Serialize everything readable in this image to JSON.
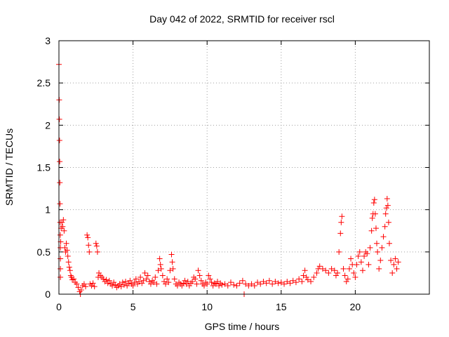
{
  "chart_data": {
    "type": "scatter",
    "title": "Day 042 of 2022, SRMTID for receiver rscl",
    "xlabel": "GPS time / hours",
    "ylabel": "SRMTID / TECUs",
    "xlim": [
      0,
      25
    ],
    "ylim": [
      0,
      3
    ],
    "xticks": [
      0,
      5,
      10,
      15,
      20
    ],
    "yticks": [
      0,
      0.5,
      1,
      1.5,
      2,
      2.5,
      3
    ],
    "xtick_labels": [
      "0",
      "5",
      "10",
      "15",
      "20"
    ],
    "ytick_labels": [
      "0",
      "0.5",
      "1",
      "1.5",
      "2",
      "2.5",
      "3"
    ],
    "grid": true,
    "marker": "+",
    "color": "#ff0000",
    "series": [
      {
        "name": "SRMTID",
        "points": [
          [
            0.0,
            2.72
          ],
          [
            0.02,
            2.3
          ],
          [
            0.03,
            2.07
          ],
          [
            0.04,
            1.82
          ],
          [
            0.05,
            1.57
          ],
          [
            0.06,
            1.32
          ],
          [
            0.07,
            1.07
          ],
          [
            0.08,
            0.85
          ],
          [
            0.09,
            0.7
          ],
          [
            0.1,
            0.55
          ],
          [
            0.1,
            0.42
          ],
          [
            0.1,
            0.3
          ],
          [
            0.1,
            0.2
          ],
          [
            0.12,
            0.62
          ],
          [
            0.15,
            0.78
          ],
          [
            0.2,
            0.85
          ],
          [
            0.25,
            0.8
          ],
          [
            0.3,
            0.88
          ],
          [
            0.35,
            0.75
          ],
          [
            0.4,
            0.55
          ],
          [
            0.45,
            0.5
          ],
          [
            0.5,
            0.6
          ],
          [
            0.55,
            0.52
          ],
          [
            0.6,
            0.45
          ],
          [
            0.65,
            0.38
          ],
          [
            0.7,
            0.32
          ],
          [
            0.75,
            0.28
          ],
          [
            0.8,
            0.22
          ],
          [
            0.85,
            0.2
          ],
          [
            0.9,
            0.17
          ],
          [
            1.0,
            0.18
          ],
          [
            1.1,
            0.14
          ],
          [
            1.2,
            0.12
          ],
          [
            1.3,
            0.08
          ],
          [
            1.4,
            0.03
          ],
          [
            1.45,
            0.0
          ],
          [
            1.5,
            0.05
          ],
          [
            1.6,
            0.1
          ],
          [
            1.7,
            0.12
          ],
          [
            1.8,
            0.09
          ],
          [
            1.9,
            0.7
          ],
          [
            1.95,
            0.67
          ],
          [
            2.0,
            0.58
          ],
          [
            2.05,
            0.5
          ],
          [
            2.1,
            0.12
          ],
          [
            2.2,
            0.1
          ],
          [
            2.3,
            0.13
          ],
          [
            2.4,
            0.09
          ],
          [
            2.5,
            0.6
          ],
          [
            2.55,
            0.57
          ],
          [
            2.6,
            0.5
          ],
          [
            2.65,
            0.2
          ],
          [
            2.7,
            0.25
          ],
          [
            2.8,
            0.22
          ],
          [
            2.9,
            0.2
          ],
          [
            3.0,
            0.18
          ],
          [
            3.1,
            0.15
          ],
          [
            3.2,
            0.17
          ],
          [
            3.3,
            0.13
          ],
          [
            3.4,
            0.16
          ],
          [
            3.5,
            0.12
          ],
          [
            3.6,
            0.1
          ],
          [
            3.7,
            0.14
          ],
          [
            3.8,
            0.11
          ],
          [
            3.9,
            0.08
          ],
          [
            4.0,
            0.1
          ],
          [
            4.1,
            0.12
          ],
          [
            4.2,
            0.09
          ],
          [
            4.3,
            0.14
          ],
          [
            4.4,
            0.11
          ],
          [
            4.5,
            0.15
          ],
          [
            4.6,
            0.1
          ],
          [
            4.7,
            0.13
          ],
          [
            4.8,
            0.16
          ],
          [
            4.9,
            0.12
          ],
          [
            5.0,
            0.1
          ],
          [
            5.1,
            0.14
          ],
          [
            5.2,
            0.18
          ],
          [
            5.3,
            0.12
          ],
          [
            5.4,
            0.15
          ],
          [
            5.5,
            0.2
          ],
          [
            5.6,
            0.13
          ],
          [
            5.7,
            0.16
          ],
          [
            5.8,
            0.25
          ],
          [
            5.9,
            0.18
          ],
          [
            6.0,
            0.22
          ],
          [
            6.1,
            0.15
          ],
          [
            6.2,
            0.12
          ],
          [
            6.3,
            0.16
          ],
          [
            6.4,
            0.14
          ],
          [
            6.5,
            0.2
          ],
          [
            6.6,
            0.12
          ],
          [
            6.7,
            0.28
          ],
          [
            6.8,
            0.42
          ],
          [
            6.85,
            0.35
          ],
          [
            6.9,
            0.3
          ],
          [
            7.0,
            0.22
          ],
          [
            7.1,
            0.15
          ],
          [
            7.2,
            0.12
          ],
          [
            7.3,
            0.18
          ],
          [
            7.4,
            0.14
          ],
          [
            7.5,
            0.28
          ],
          [
            7.6,
            0.47
          ],
          [
            7.65,
            0.38
          ],
          [
            7.7,
            0.3
          ],
          [
            7.8,
            0.18
          ],
          [
            7.9,
            0.12
          ],
          [
            8.0,
            0.1
          ],
          [
            8.1,
            0.14
          ],
          [
            8.2,
            0.12
          ],
          [
            8.3,
            0.1
          ],
          [
            8.4,
            0.13
          ],
          [
            8.5,
            0.16
          ],
          [
            8.6,
            0.12
          ],
          [
            8.7,
            0.15
          ],
          [
            8.8,
            0.1
          ],
          [
            8.9,
            0.13
          ],
          [
            9.0,
            0.15
          ],
          [
            9.1,
            0.2
          ],
          [
            9.2,
            0.18
          ],
          [
            9.3,
            0.12
          ],
          [
            9.4,
            0.28
          ],
          [
            9.5,
            0.22
          ],
          [
            9.6,
            0.16
          ],
          [
            9.7,
            0.12
          ],
          [
            9.8,
            0.1
          ],
          [
            9.9,
            0.14
          ],
          [
            10.0,
            0.12
          ],
          [
            10.1,
            0.22
          ],
          [
            10.2,
            0.18
          ],
          [
            10.3,
            0.14
          ],
          [
            10.4,
            0.1
          ],
          [
            10.5,
            0.13
          ],
          [
            10.6,
            0.12
          ],
          [
            10.7,
            0.15
          ],
          [
            10.8,
            0.1
          ],
          [
            10.9,
            0.13
          ],
          [
            11.0,
            0.11
          ],
          [
            11.2,
            0.12
          ],
          [
            11.4,
            0.1
          ],
          [
            11.6,
            0.14
          ],
          [
            11.8,
            0.11
          ],
          [
            12.0,
            0.1
          ],
          [
            12.2,
            0.13
          ],
          [
            12.4,
            0.16
          ],
          [
            12.5,
            0.0
          ],
          [
            12.6,
            0.12
          ],
          [
            12.8,
            0.1
          ],
          [
            13.0,
            0.12
          ],
          [
            13.2,
            0.1
          ],
          [
            13.4,
            0.14
          ],
          [
            13.6,
            0.12
          ],
          [
            13.8,
            0.15
          ],
          [
            14.0,
            0.13
          ],
          [
            14.2,
            0.16
          ],
          [
            14.4,
            0.12
          ],
          [
            14.6,
            0.15
          ],
          [
            14.8,
            0.13
          ],
          [
            15.0,
            0.14
          ],
          [
            15.2,
            0.12
          ],
          [
            15.4,
            0.15
          ],
          [
            15.6,
            0.13
          ],
          [
            15.8,
            0.16
          ],
          [
            16.0,
            0.14
          ],
          [
            16.2,
            0.18
          ],
          [
            16.4,
            0.15
          ],
          [
            16.5,
            0.22
          ],
          [
            16.6,
            0.28
          ],
          [
            16.7,
            0.2
          ],
          [
            16.8,
            0.17
          ],
          [
            17.0,
            0.15
          ],
          [
            17.2,
            0.2
          ],
          [
            17.4,
            0.25
          ],
          [
            17.5,
            0.3
          ],
          [
            17.6,
            0.33
          ],
          [
            17.8,
            0.3
          ],
          [
            18.0,
            0.28
          ],
          [
            18.2,
            0.25
          ],
          [
            18.4,
            0.3
          ],
          [
            18.6,
            0.28
          ],
          [
            18.7,
            0.22
          ],
          [
            18.8,
            0.25
          ],
          [
            18.9,
            0.5
          ],
          [
            19.0,
            0.72
          ],
          [
            19.05,
            0.85
          ],
          [
            19.1,
            0.92
          ],
          [
            19.2,
            0.3
          ],
          [
            19.3,
            0.22
          ],
          [
            19.4,
            0.15
          ],
          [
            19.5,
            0.18
          ],
          [
            19.6,
            0.3
          ],
          [
            19.7,
            0.42
          ],
          [
            19.8,
            0.35
          ],
          [
            19.9,
            0.25
          ],
          [
            20.0,
            0.2
          ],
          [
            20.1,
            0.35
          ],
          [
            20.2,
            0.45
          ],
          [
            20.3,
            0.5
          ],
          [
            20.4,
            0.38
          ],
          [
            20.5,
            0.28
          ],
          [
            20.6,
            0.45
          ],
          [
            20.7,
            0.5
          ],
          [
            20.8,
            0.48
          ],
          [
            20.9,
            0.35
          ],
          [
            21.0,
            0.55
          ],
          [
            21.1,
            0.75
          ],
          [
            21.15,
            0.9
          ],
          [
            21.2,
            0.95
          ],
          [
            21.25,
            1.08
          ],
          [
            21.3,
            1.12
          ],
          [
            21.35,
            0.95
          ],
          [
            21.4,
            0.78
          ],
          [
            21.45,
            0.6
          ],
          [
            21.5,
            0.5
          ],
          [
            21.6,
            0.3
          ],
          [
            21.7,
            0.4
          ],
          [
            21.8,
            0.55
          ],
          [
            21.9,
            0.68
          ],
          [
            22.0,
            0.8
          ],
          [
            22.05,
            0.95
          ],
          [
            22.1,
            1.02
          ],
          [
            22.15,
            1.13
          ],
          [
            22.2,
            1.05
          ],
          [
            22.25,
            0.85
          ],
          [
            22.3,
            0.6
          ],
          [
            22.4,
            0.4
          ],
          [
            22.5,
            0.25
          ],
          [
            22.6,
            0.35
          ],
          [
            22.7,
            0.42
          ],
          [
            22.8,
            0.3
          ],
          [
            22.9,
            0.38
          ]
        ]
      }
    ]
  }
}
